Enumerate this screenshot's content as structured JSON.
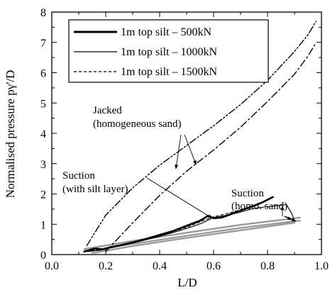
{
  "chart_data": {
    "type": "line",
    "title": "",
    "xlabel": "L/D",
    "ylabel": "Normalised pressure pγ'/D",
    "xlim": [
      0.0,
      1.0
    ],
    "ylim": [
      0,
      8
    ],
    "xticks": [
      "0.0",
      "0.2",
      "0.4",
      "0.6",
      "0.8",
      "1.0"
    ],
    "yticks": [
      "0",
      "1",
      "2",
      "3",
      "4",
      "5",
      "6",
      "7",
      "8"
    ],
    "grid": false,
    "legend": {
      "placement": "top-left",
      "entries": [
        "1m top silt – 500kN",
        "1m top silt – 1000kN",
        "1m top silt – 1500kN"
      ]
    },
    "annotations": [
      {
        "lines": [
          "Jacked",
          "(homogeneous sand)"
        ]
      },
      {
        "lines": [
          "Suction",
          "(with silt layer)"
        ]
      },
      {
        "lines": [
          "Suction",
          "(homo. sand)"
        ]
      }
    ],
    "series": [
      {
        "style": "thick",
        "x": [
          0.12,
          0.14,
          0.16,
          0.19,
          0.22,
          0.25,
          0.3,
          0.35,
          0.4,
          0.45,
          0.5,
          0.55,
          0.58,
          0.6,
          0.63,
          0.66,
          0.7,
          0.74,
          0.78,
          0.82
        ],
        "y": [
          0.1,
          0.15,
          0.2,
          0.17,
          0.25,
          0.3,
          0.4,
          0.52,
          0.65,
          0.78,
          0.95,
          1.12,
          1.28,
          1.2,
          1.22,
          1.32,
          1.45,
          1.58,
          1.72,
          1.9
        ]
      },
      {
        "style": "thin",
        "x": [
          0.13,
          0.18,
          0.25,
          0.32,
          0.4,
          0.47,
          0.52,
          0.56,
          0.6,
          0.65,
          0.7,
          0.74,
          0.77,
          0.8,
          0.84,
          0.87,
          0.89,
          0.9
        ],
        "y": [
          0.1,
          0.14,
          0.28,
          0.42,
          0.6,
          0.78,
          0.92,
          1.05,
          1.22,
          1.3,
          1.4,
          1.5,
          1.55,
          1.58,
          1.62,
          1.65,
          1.35,
          1.1
        ]
      },
      {
        "style": "dashed",
        "x": [
          0.13,
          0.2,
          0.3,
          0.4,
          0.5,
          0.55,
          0.6,
          0.65,
          0.7,
          0.75,
          0.8
        ],
        "y": [
          0.1,
          0.2,
          0.38,
          0.62,
          0.9,
          1.08,
          1.25,
          1.35,
          1.48,
          1.62,
          1.78
        ]
      },
      {
        "style": "grey",
        "x": [
          0.12,
          0.3,
          0.5,
          0.7,
          0.92
        ],
        "y": [
          0.18,
          0.45,
          0.72,
          0.98,
          1.22
        ]
      },
      {
        "style": "grey",
        "x": [
          0.12,
          0.3,
          0.5,
          0.7,
          0.92
        ],
        "y": [
          0.1,
          0.35,
          0.62,
          0.88,
          1.12
        ]
      },
      {
        "style": "grey",
        "x": [
          0.15,
          0.3,
          0.5,
          0.7,
          0.9
        ],
        "y": [
          0.05,
          0.28,
          0.55,
          0.8,
          1.05
        ]
      },
      {
        "style": "dashdotdot",
        "x": [
          0.13,
          0.2,
          0.3,
          0.4,
          0.5,
          0.6,
          0.7,
          0.8,
          0.9,
          0.95,
          0.98
        ],
        "y": [
          0.3,
          1.3,
          2.2,
          2.95,
          3.6,
          4.25,
          4.95,
          5.75,
          6.7,
          7.25,
          7.7
        ]
      },
      {
        "style": "dashdot",
        "x": [
          0.2,
          0.3,
          0.4,
          0.5,
          0.6,
          0.7,
          0.8,
          0.9,
          0.95,
          0.98
        ],
        "y": [
          0.1,
          1.05,
          1.95,
          2.75,
          3.45,
          4.2,
          5.05,
          5.95,
          6.55,
          7.0
        ]
      }
    ]
  }
}
